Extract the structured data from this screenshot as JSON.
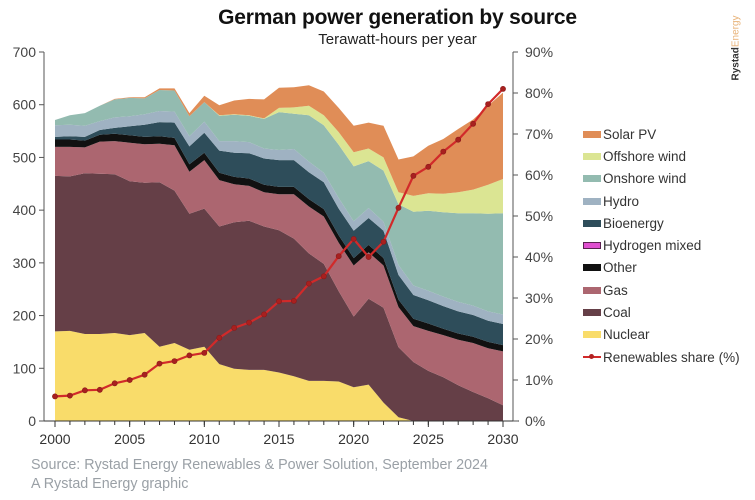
{
  "logo": {
    "part1": "Rystad",
    "part2": "Energy"
  },
  "chart_data": {
    "type": "area",
    "title": "German power generation by source",
    "subtitle": "Terawatt-hours per year",
    "xlabel": "",
    "ylabel": "Terawatt-hours per year",
    "y2label": "Renewables share (%)",
    "x": [
      2000,
      2001,
      2002,
      2003,
      2004,
      2005,
      2006,
      2007,
      2008,
      2009,
      2010,
      2011,
      2012,
      2013,
      2014,
      2015,
      2016,
      2017,
      2018,
      2019,
      2020,
      2021,
      2022,
      2023,
      2024,
      2025,
      2026,
      2027,
      2028,
      2029,
      2030
    ],
    "xlim": [
      2000,
      2030
    ],
    "x_ticks": [
      "2000",
      "2005",
      "2010",
      "2015",
      "2020",
      "2025",
      "2030"
    ],
    "ylim": [
      0,
      700
    ],
    "y_ticks": [
      "0",
      "100",
      "200",
      "300",
      "400",
      "500",
      "600",
      "700"
    ],
    "y2lim": [
      0,
      90
    ],
    "y2_ticks": [
      "0%",
      "10%",
      "20%",
      "30%",
      "40%",
      "50%",
      "60%",
      "70%",
      "80%",
      "90%"
    ],
    "stacked": true,
    "series": [
      {
        "name": "Nuclear",
        "color": "#f9dc6a",
        "values": [
          170,
          171,
          165,
          165,
          167,
          163,
          167,
          141,
          148,
          135,
          141,
          108,
          99,
          97,
          97,
          92,
          85,
          76,
          76,
          75,
          64,
          69,
          35,
          7,
          0,
          0,
          0,
          0,
          0,
          0,
          0
        ]
      },
      {
        "name": "Coal",
        "color": "#653f47",
        "values": [
          295,
          293,
          305,
          304,
          301,
          292,
          285,
          312,
          289,
          258,
          262,
          261,
          278,
          283,
          272,
          270,
          261,
          242,
          222,
          171,
          134,
          163,
          180,
          133,
          112,
          95,
          83,
          68,
          55,
          43,
          30
        ]
      },
      {
        "name": "Gas",
        "color": "#ac6670",
        "values": [
          55,
          56,
          49,
          61,
          63,
          73,
          73,
          73,
          86,
          80,
          92,
          88,
          72,
          66,
          65,
          68,
          84,
          89,
          90,
          92,
          97,
          88,
          80,
          76,
          68,
          76,
          80,
          86,
          93,
          95,
          102
        ]
      },
      {
        "name": "Other",
        "color": "#111111",
        "values": [
          14,
          14,
          13,
          13,
          14,
          14,
          14,
          14,
          14,
          14,
          14,
          14,
          14,
          14,
          14,
          14,
          14,
          14,
          14,
          14,
          14,
          14,
          14,
          14,
          14,
          14,
          12,
          12,
          12,
          12,
          12
        ]
      },
      {
        "name": "Hydrogen mixed",
        "color": "#e04fd0",
        "values": [
          0,
          0,
          0,
          0,
          0,
          0,
          0,
          0,
          0,
          0,
          0,
          0,
          0,
          0,
          0,
          0,
          0,
          0,
          0,
          0,
          0,
          0,
          0,
          0,
          0,
          0,
          0,
          0,
          0,
          0,
          0
        ]
      },
      {
        "name": "Bioenergy",
        "color": "#2e4d5a",
        "values": [
          5,
          6,
          7,
          9,
          11,
          17,
          23,
          27,
          29,
          34,
          38,
          42,
          46,
          48,
          50,
          51,
          51,
          51,
          51,
          51,
          52,
          51,
          52,
          47,
          45,
          44,
          43,
          42,
          41,
          40,
          40
        ]
      },
      {
        "name": "Hydro",
        "color": "#9fb2c2",
        "values": [
          22,
          22,
          21,
          17,
          20,
          19,
          20,
          21,
          21,
          19,
          21,
          18,
          22,
          21,
          19,
          19,
          21,
          20,
          18,
          20,
          18,
          19,
          17,
          19,
          18,
          18,
          18,
          18,
          18,
          18,
          18
        ]
      },
      {
        "name": "Onshore wind",
        "color": "#93bbb0",
        "values": [
          10,
          18,
          24,
          29,
          34,
          35,
          30,
          40,
          40,
          38,
          37,
          48,
          50,
          50,
          56,
          72,
          67,
          88,
          90,
          101,
          104,
          89,
          97,
          115,
          140,
          152,
          160,
          168,
          175,
          185,
          192
        ]
      },
      {
        "name": "Offshore wind",
        "color": "#dbe593",
        "values": [
          0,
          0,
          0,
          0,
          0,
          0,
          0,
          0,
          0,
          0,
          0,
          1,
          1,
          1,
          1,
          8,
          12,
          18,
          19,
          24,
          27,
          24,
          25,
          23,
          30,
          33,
          35,
          40,
          45,
          55,
          65
        ]
      },
      {
        "name": "Solar PV",
        "color": "#e08d57",
        "values": [
          0,
          0,
          0,
          0,
          1,
          1,
          2,
          3,
          4,
          6,
          12,
          19,
          26,
          31,
          36,
          38,
          38,
          39,
          45,
          46,
          50,
          49,
          60,
          62,
          75,
          90,
          104,
          120,
          133,
          150,
          164
        ]
      }
    ],
    "line_series": {
      "name": "Renewables share (%)",
      "color": "#d12a2a",
      "axis": "right",
      "values": [
        6.0,
        6.2,
        7.5,
        7.6,
        9.2,
        10.0,
        11.3,
        14.0,
        14.6,
        16.0,
        16.6,
        20.3,
        22.7,
        24.0,
        26.0,
        29.2,
        29.3,
        33.5,
        35.3,
        40.2,
        44.4,
        40.0,
        43.7,
        52.0,
        59.8,
        62.0,
        65.7,
        68.6,
        72.5,
        77.3,
        81.0
      ]
    },
    "legend": {
      "placement": "right",
      "items": [
        "Solar PV",
        "Offshore wind",
        "Onshore wind",
        "Hydro",
        "Bioenergy",
        "Hydrogen mixed",
        "Other",
        "Gas",
        "Coal",
        "Nuclear",
        "Renewables share (%)"
      ]
    },
    "grid": false,
    "source": "Source: Rystad Energy Renewables & Power Solution, September 2024",
    "credit": "A Rystad Energy graphic"
  }
}
